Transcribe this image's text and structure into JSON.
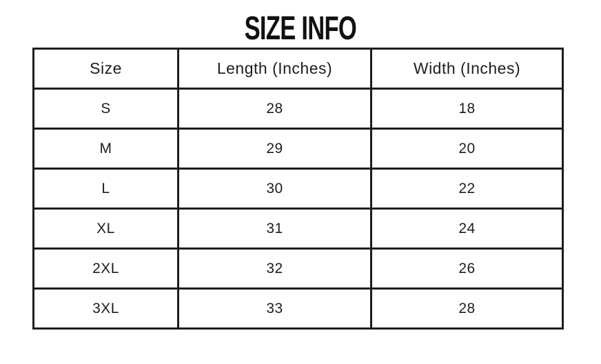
{
  "page": {
    "background_color": "#ffffff",
    "text_color": "#1d1d1d",
    "border_color": "#1d1d1d"
  },
  "title": "SIZE INFO",
  "table": {
    "headers": [
      "Size",
      "Length (Inches)",
      "Width (Inches)"
    ],
    "rows": [
      {
        "size": "S",
        "length": "28",
        "width": "18"
      },
      {
        "size": "M",
        "length": "29",
        "width": "20"
      },
      {
        "size": "L",
        "length": "30",
        "width": "22"
      },
      {
        "size": "XL",
        "length": "31",
        "width": "24"
      },
      {
        "size": "2XL",
        "length": "32",
        "width": "26"
      },
      {
        "size": "3XL",
        "length": "33",
        "width": "28"
      }
    ]
  },
  "chart_data": {
    "type": "table",
    "title": "SIZE INFO",
    "columns": [
      "Size",
      "Length (Inches)",
      "Width (Inches)"
    ],
    "categories": [
      "S",
      "M",
      "L",
      "XL",
      "2XL",
      "3XL"
    ],
    "series": [
      {
        "name": "Length (Inches)",
        "values": [
          28,
          29,
          30,
          31,
          32,
          33
        ]
      },
      {
        "name": "Width (Inches)",
        "values": [
          18,
          20,
          22,
          24,
          26,
          28
        ]
      }
    ]
  }
}
